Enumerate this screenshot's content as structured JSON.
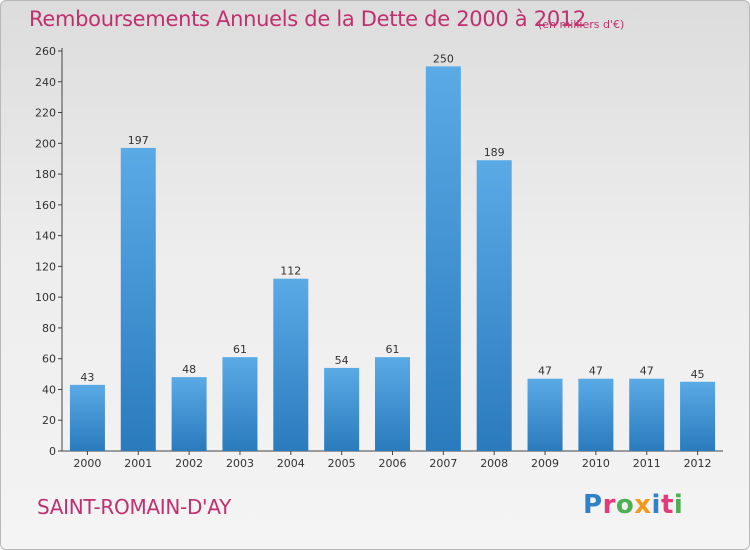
{
  "header": {
    "title": "Remboursements Annuels de la Dette de 2000 à 2012",
    "unit": "(en milliers d'€)"
  },
  "footer": {
    "commune": "SAINT-ROMAIN-D'AY",
    "logo_letters": [
      {
        "text": "P",
        "color": "#2f82c8"
      },
      {
        "text": "r",
        "color": "#e23a7a"
      },
      {
        "text": "o",
        "color": "#4caf50"
      },
      {
        "text": "x",
        "color": "#f29a1f"
      },
      {
        "text": "i",
        "color": "#2f82c8"
      },
      {
        "text": "t",
        "color": "#e23a7a"
      },
      {
        "text": "i",
        "color": "#4caf50"
      }
    ]
  },
  "colors": {
    "bar_light": "#5aaae6",
    "bar_dark": "#2a7bbd",
    "accent": "#c0306e"
  },
  "chart_data": {
    "type": "bar",
    "title": "Remboursements Annuels de la Dette de 2000 à 2012",
    "subtitle": "(en milliers d'€)",
    "xlabel": "",
    "ylabel": "",
    "categories": [
      "2000",
      "2001",
      "2002",
      "2003",
      "2004",
      "2005",
      "2006",
      "2007",
      "2008",
      "2009",
      "2010",
      "2011",
      "2012"
    ],
    "values": [
      43,
      197,
      48,
      61,
      112,
      54,
      61,
      250,
      189,
      47,
      47,
      47,
      45
    ],
    "ylim": [
      0,
      260
    ],
    "yticks": [
      0,
      20,
      40,
      60,
      80,
      100,
      120,
      140,
      160,
      180,
      200,
      220,
      240,
      260
    ],
    "grid": false,
    "legend": "none"
  }
}
